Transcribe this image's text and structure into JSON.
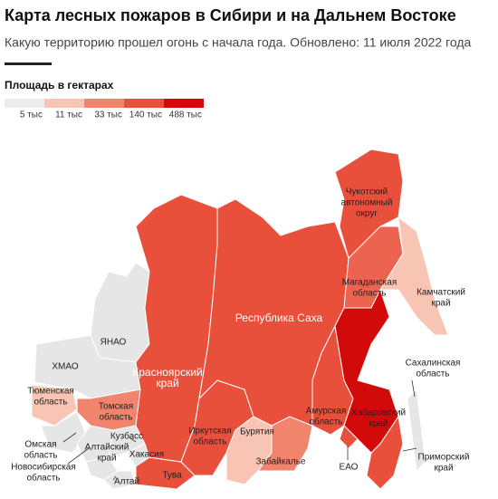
{
  "title": "Карта лесных пожаров в Сибири и на Дальнем Востоке",
  "subtitle": "Какую территорию прошел огонь с начала года. Обновлено: 11 июля 2022 года",
  "legend": {
    "title": "Площадь в гектарах",
    "items": [
      {
        "label": "5 тыс",
        "color": "#ececec"
      },
      {
        "label": "11 тыс",
        "color": "#f8c4b4"
      },
      {
        "label": "33 тыс",
        "color": "#f0846c"
      },
      {
        "label": "140 тыс",
        "color": "#e8503c"
      },
      {
        "label": "488 тыс",
        "color": "#d20a0a"
      }
    ]
  },
  "regions": [
    {
      "label": [
        "ЯНАО"
      ],
      "color": "#e6e6e6"
    },
    {
      "label": [
        "ХМАО"
      ],
      "color": "#e6e6e6"
    },
    {
      "label": [
        "Тюменская",
        "область"
      ],
      "color": "#f8c4b4"
    },
    {
      "label": [
        "Омская",
        "область"
      ],
      "color": "#e6e6e6"
    },
    {
      "label": [
        "Новосибирская",
        "область"
      ],
      "color": "#e6e6e6"
    },
    {
      "label": [
        "Томская",
        "область"
      ],
      "color": "#f0846c"
    },
    {
      "label": [
        "Алтайский",
        "край"
      ],
      "color": "#e6e6e6"
    },
    {
      "label": [
        "Кузбасс"
      ],
      "color": "#e6e6e6"
    },
    {
      "label": [
        "Хакасия"
      ],
      "color": "#e6e6e6"
    },
    {
      "label": [
        "Алтай"
      ],
      "color": "#e6e6e6"
    },
    {
      "label": [
        "Тува"
      ],
      "color": "#e8503c"
    },
    {
      "label": [
        "Красноярский",
        "край"
      ],
      "color": "#e8503c"
    },
    {
      "label": [
        "Иркутская",
        "область"
      ],
      "color": "#e8503c"
    },
    {
      "label": [
        "Бурятия"
      ],
      "color": "#f8c4b4"
    },
    {
      "label": [
        "Забайкалье"
      ],
      "color": "#f0846c"
    },
    {
      "label": [
        "Республика Саха"
      ],
      "color": "#e8503c"
    },
    {
      "label": [
        "Чукотский",
        "автономный",
        "округ"
      ],
      "color": "#e8503c"
    },
    {
      "label": [
        "Магаданская",
        "область"
      ],
      "color": "#ec6450"
    },
    {
      "label": [
        "Камчатский",
        "край"
      ],
      "color": "#f8c4b4"
    },
    {
      "label": [
        "Амурская",
        "область"
      ],
      "color": "#e8503c"
    },
    {
      "label": [
        "Хабаровский",
        "край"
      ],
      "color": "#d20a0a"
    },
    {
      "label": [
        "ЕАО"
      ],
      "color": "#e8503c"
    },
    {
      "label": [
        "Приморский",
        "край"
      ],
      "color": "#e8503c"
    },
    {
      "label": [
        "Сахалинская",
        "область"
      ],
      "color": "#e6e6e6"
    }
  ]
}
